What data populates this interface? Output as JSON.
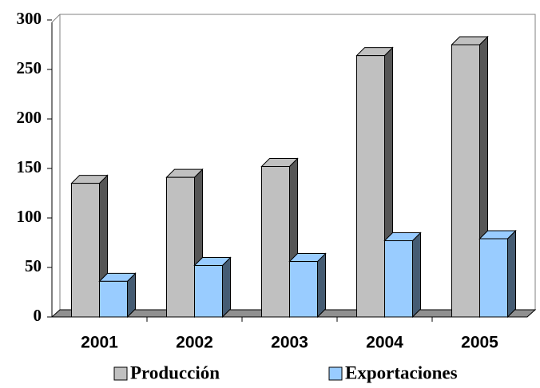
{
  "chart_data": {
    "type": "bar3d",
    "categories": [
      "2001",
      "2002",
      "2003",
      "2004",
      "2005"
    ],
    "series": [
      {
        "name": "Producción",
        "color": "#c0c0c0",
        "values": [
          135,
          141,
          152,
          264,
          275
        ]
      },
      {
        "name": "Exportaciones",
        "color": "#99ccff",
        "values": [
          36,
          52,
          56,
          77,
          79
        ]
      }
    ],
    "ylim": [
      0,
      300
    ],
    "yticks": [
      0,
      50,
      100,
      150,
      200,
      250,
      300
    ],
    "legend": "bottom"
  }
}
